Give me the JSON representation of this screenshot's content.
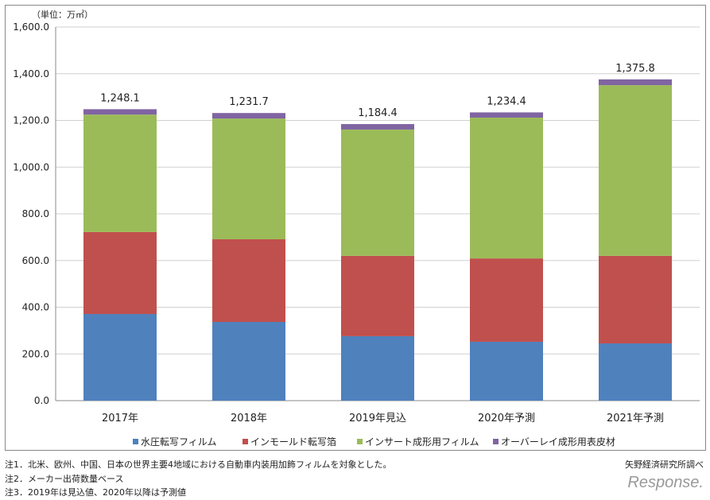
{
  "chart_data": {
    "type": "bar",
    "stacked": true,
    "unit_label": "（単位：万㎡）",
    "categories": [
      "2017年",
      "2018年",
      "2019年見込",
      "2020年予測",
      "2021年予測"
    ],
    "series": [
      {
        "name": "水圧転写フィルム",
        "color": "#4f81bd",
        "values": [
          371,
          337,
          276,
          252,
          245
        ]
      },
      {
        "name": "インモールド転写箔",
        "color": "#c0504d",
        "values": [
          351,
          354,
          344,
          357,
          375
        ]
      },
      {
        "name": "インサート成形用フィルム",
        "color": "#9bbb59",
        "values": [
          503,
          517,
          541,
          603,
          731
        ]
      },
      {
        "name": "オーバーレイ成形用表皮材",
        "color": "#8064a2",
        "values": [
          23.1,
          23.7,
          23.4,
          22.4,
          24.8
        ]
      }
    ],
    "totals": [
      "1,248.1",
      "1,231.7",
      "1,184.4",
      "1,234.4",
      "1,375.8"
    ],
    "total_values": [
      1248.1,
      1231.7,
      1184.4,
      1234.4,
      1375.8
    ],
    "ylim": [
      0,
      1600
    ],
    "yticks": [
      "0.0",
      "200.0",
      "400.0",
      "600.0",
      "800.0",
      "1,000.0",
      "1,200.0",
      "1,400.0",
      "1,600.0"
    ],
    "grid": true,
    "legend": "bottom"
  },
  "notes": [
    "注1．北米、欧州、中国、日本の世界主要4地域における自動車内装用加飾フィルムを対象とした。",
    "注2．メーカー出荷数量ベース",
    "注3．2019年は見込値、2020年以降は予測値"
  ],
  "source": "矢野経済研究所調べ",
  "logo": "Response."
}
